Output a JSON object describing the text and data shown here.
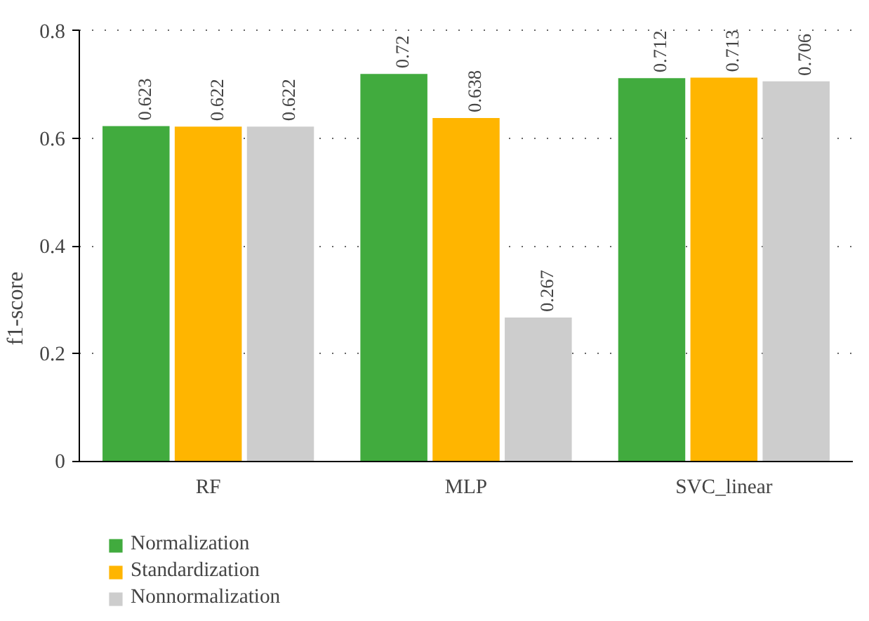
{
  "chart_data": {
    "type": "bar",
    "ylabel": "f1-score",
    "categories": [
      "RF",
      "MLP",
      "SVC_linear"
    ],
    "series": [
      {
        "name": "Normalization",
        "color": "#41ab3e",
        "values": [
          0.623,
          0.72,
          0.712
        ]
      },
      {
        "name": "Standardization",
        "color": "#ffb500",
        "values": [
          0.622,
          0.638,
          0.713
        ]
      },
      {
        "name": "Nonnormalization",
        "color": "#cdcdcd",
        "values": [
          0.622,
          0.267,
          0.706
        ]
      }
    ],
    "ylim": [
      0,
      0.8
    ],
    "yticks": [
      0,
      0.2,
      0.4,
      0.6,
      0.8
    ],
    "grid": "y",
    "legend": "bottom left",
    "data_labels": true
  }
}
